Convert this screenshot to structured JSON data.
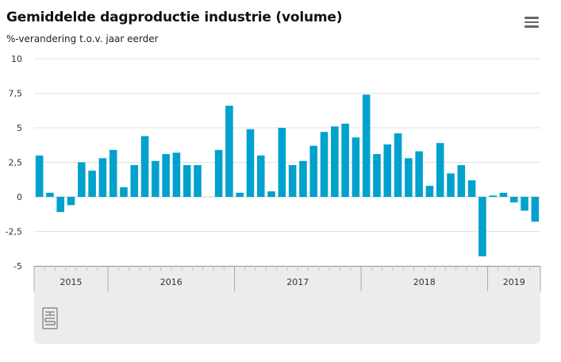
{
  "header": {
    "title": "Gemiddelde dagproductie industrie (volume)",
    "subtitle": "%-verandering t.o.v. jaar eerder"
  },
  "colors": {
    "bar": "#00a1cd",
    "grid": "#e2e2e2",
    "axis": "#999999",
    "text": "#333333"
  },
  "icons": {
    "menu": "hamburger-menu-icon",
    "logo": "cbs-logo-icon"
  },
  "chart_data": {
    "type": "bar",
    "title": "Gemiddelde dagproductie industrie (volume)",
    "subtitle": "%-verandering t.o.v. jaar eerder",
    "xlabel": "",
    "ylabel": "",
    "ylim": [
      -5,
      10
    ],
    "yticks": [
      10,
      7.5,
      5,
      2.5,
      0,
      -2.5,
      -5
    ],
    "ytick_labels": [
      "10",
      "7,5",
      "5",
      "2,5",
      "0",
      "-2,5",
      "-5"
    ],
    "grid": true,
    "years": [
      {
        "label": "2015",
        "count": 7
      },
      {
        "label": "2016",
        "count": 12
      },
      {
        "label": "2017",
        "count": 12
      },
      {
        "label": "2018",
        "count": 12
      },
      {
        "label": "2019",
        "count": 5
      }
    ],
    "values": [
      3.0,
      0.3,
      -1.1,
      -0.6,
      2.5,
      1.9,
      2.8,
      3.4,
      0.7,
      2.3,
      4.4,
      2.6,
      3.1,
      3.2,
      2.3,
      2.3,
      null,
      3.4,
      6.6,
      0.3,
      4.9,
      3.0,
      0.4,
      5.0,
      2.3,
      2.6,
      3.7,
      4.7,
      5.1,
      5.3,
      4.3,
      7.4,
      3.1,
      3.8,
      4.6,
      2.8,
      3.3,
      0.8,
      3.9,
      1.7,
      2.3,
      1.2,
      -4.3,
      0.1,
      0.3,
      -0.4,
      -1.0,
      -1.8
    ]
  }
}
